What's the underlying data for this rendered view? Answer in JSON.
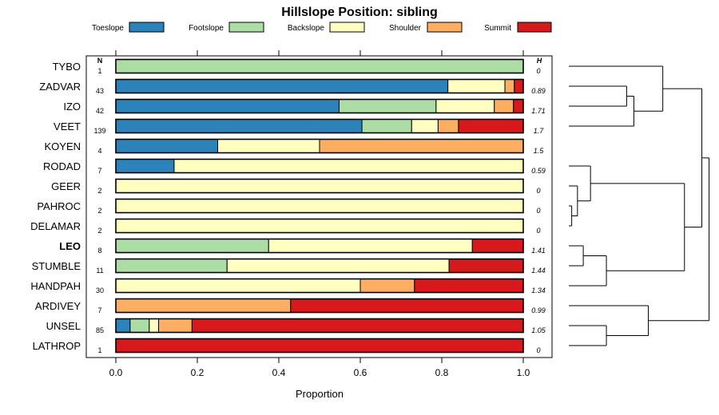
{
  "chart_data": {
    "type": "bar",
    "subtype": "stacked-horizontal-proportion-with-dendrogram",
    "title": "Hillslope Position: sibling",
    "xlabel": "Proportion",
    "ylabel": "",
    "xlim": [
      0,
      1
    ],
    "x_ticks": [
      "0.0",
      "0.2",
      "0.4",
      "0.6",
      "0.8",
      "1.0"
    ],
    "n_header": "N",
    "h_header": "H",
    "highlight": "LEO",
    "legend_position": "top",
    "categories": [
      "TYBO",
      "ZADVAR",
      "IZO",
      "VEET",
      "KOYEN",
      "RODAD",
      "GEER",
      "PAHROC",
      "DELAMAR",
      "LEO",
      "STUMBLE",
      "HANDPAH",
      "ARDIVEY",
      "UNSEL",
      "LATHROP"
    ],
    "n_values": [
      "1",
      "43",
      "42",
      "139",
      "4",
      "7",
      "2",
      "2",
      "2",
      "8",
      "11",
      "30",
      "7",
      "85",
      "1"
    ],
    "h_values": [
      "0",
      "0.89",
      "1.71",
      "1.7",
      "1.5",
      "0.59",
      "0",
      "0",
      "0",
      "1.41",
      "1.44",
      "1.34",
      "0.99",
      "1.05",
      "0"
    ],
    "series": [
      {
        "name": "Toeslope",
        "color": "#2b83ba",
        "values": [
          0,
          0.815,
          0.548,
          0.604,
          0.25,
          0.143,
          0,
          0,
          0,
          0,
          0,
          0,
          0,
          0.035,
          0
        ]
      },
      {
        "name": "Footslope",
        "color": "#abdda4",
        "values": [
          1,
          0,
          0.238,
          0.122,
          0,
          0,
          0,
          0,
          0,
          0.375,
          0.273,
          0,
          0,
          0.047,
          0
        ]
      },
      {
        "name": "Backslope",
        "color": "#ffffbf",
        "values": [
          0,
          0.14,
          0.143,
          0.065,
          0.25,
          0.857,
          1,
          1,
          1,
          0.5,
          0.545,
          0.6,
          0,
          0.023,
          0
        ]
      },
      {
        "name": "Shoulder",
        "color": "#fdae61",
        "values": [
          0,
          0.023,
          0.047,
          0.05,
          0.5,
          0,
          0,
          0,
          0,
          0,
          0,
          0.133,
          0.429,
          0.082,
          0
        ]
      },
      {
        "name": "Summit",
        "color": "#d7191c",
        "values": [
          0,
          0.022,
          0.024,
          0.159,
          0,
          0,
          0,
          0,
          0,
          0.125,
          0.182,
          0.267,
          0.571,
          0.813,
          1
        ]
      }
    ],
    "dendrogram": {
      "max_height": 1.0,
      "merges": [
        [
          7,
          8,
          0.02
        ],
        [
          6,
          99,
          0.06
        ],
        [
          5,
          100,
          0.15
        ],
        [
          1,
          2,
          0.4
        ],
        [
          3,
          102,
          0.45
        ],
        [
          0,
          103,
          0.65
        ],
        [
          9,
          10,
          0.1
        ],
        [
          105,
          11,
          0.26
        ],
        [
          13,
          14,
          0.26
        ],
        [
          12,
          107,
          0.55
        ],
        [
          101,
          106,
          0.8
        ],
        [
          104,
          109,
          0.92
        ],
        [
          110,
          108,
          0.97
        ]
      ]
    }
  }
}
